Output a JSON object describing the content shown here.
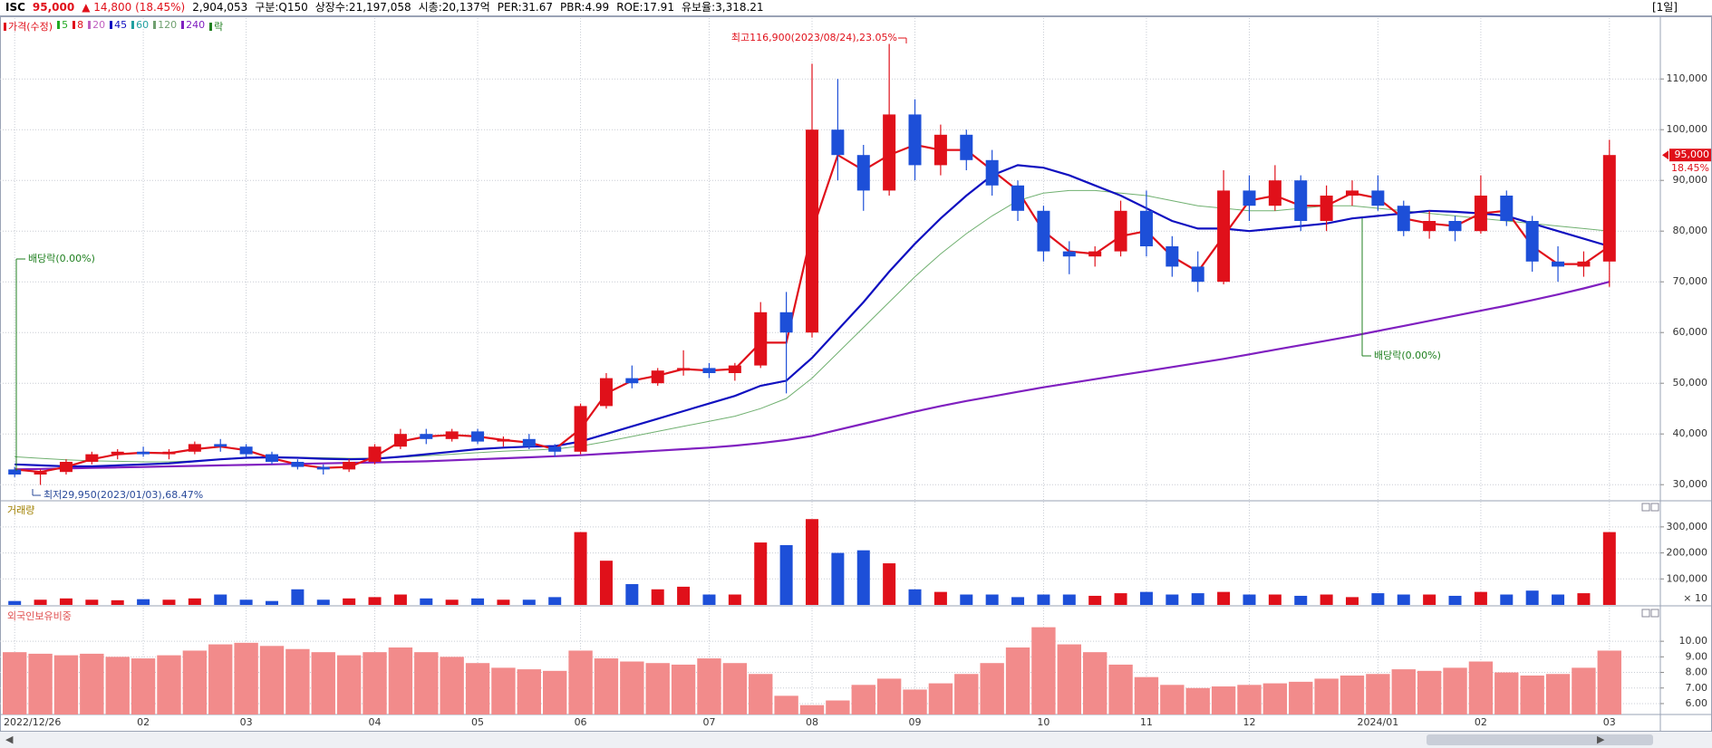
{
  "header": {
    "code": "ISC",
    "price": "95,000",
    "change": "▲ 14,800 (18.45%)",
    "volume": "2,904,053",
    "market": "구분:Q150",
    "shares": "상장수:21,197,058",
    "cap": "시총:20,137억",
    "per": "PER:31.67",
    "pbr": "PBR:4.99",
    "roe": "ROE:17.91",
    "reserve": "유보율:3,318.21",
    "period": "[1일]"
  },
  "chart_data": [
    {
      "type": "candlestick",
      "legend": [
        {
          "name": "가격(수정)",
          "color": "#e0101a"
        },
        {
          "name": "5",
          "color": "#22aa22"
        },
        {
          "name": "8",
          "color": "#e0101a"
        },
        {
          "name": "20",
          "color": "#c060c0"
        },
        {
          "name": "45",
          "color": "#1010c0"
        },
        {
          "name": "60",
          "color": "#20a0a0"
        },
        {
          "name": "120",
          "color": "#70a070"
        },
        {
          "name": "240",
          "color": "#8020c0"
        },
        {
          "name": "락",
          "color": "#208020"
        }
      ],
      "categories": [
        "2022/12/26",
        null,
        null,
        null,
        null,
        "02",
        null,
        null,
        null,
        "03",
        null,
        null,
        null,
        null,
        "04",
        null,
        null,
        null,
        "05",
        null,
        null,
        null,
        "06",
        null,
        null,
        null,
        null,
        "07",
        null,
        null,
        null,
        "08",
        null,
        null,
        null,
        "09",
        null,
        null,
        null,
        null,
        "10",
        null,
        null,
        null,
        "11",
        null,
        null,
        null,
        "12",
        null,
        null,
        null,
        null,
        "2024/01",
        null,
        null,
        null,
        "02",
        null,
        null,
        null,
        null,
        "03"
      ],
      "open": [
        33000,
        32000,
        32500,
        34500,
        36000,
        36500,
        36000,
        36500,
        38000,
        37500,
        36000,
        34500,
        33500,
        33000,
        34500,
        37500,
        40000,
        39000,
        40500,
        38500,
        39000,
        37500,
        36500,
        45500,
        51000,
        50000,
        52500,
        53000,
        52000,
        53500,
        64000,
        60000,
        100000,
        95000,
        88000,
        103000,
        93000,
        99000,
        94000,
        89000,
        84000,
        76000,
        75000,
        76000,
        84000,
        77000,
        73000,
        70000,
        88000,
        85000,
        90000,
        82000,
        87000,
        88000,
        85000,
        80000,
        82000,
        80000,
        87000,
        82000,
        74000,
        73000,
        74000
      ],
      "high": [
        33500,
        33000,
        35000,
        36500,
        37000,
        37500,
        37000,
        38500,
        39000,
        38000,
        36500,
        35000,
        34000,
        35000,
        38000,
        41000,
        41000,
        41000,
        41000,
        39500,
        40000,
        38000,
        46000,
        52000,
        53500,
        53000,
        56500,
        54000,
        54000,
        66000,
        68000,
        113000,
        110000,
        97000,
        116900,
        106000,
        101000,
        100000,
        96000,
        90000,
        85000,
        78000,
        77000,
        86000,
        88000,
        79000,
        76000,
        92000,
        91000,
        93000,
        91000,
        89000,
        90000,
        91000,
        86000,
        84000,
        83000,
        91000,
        88000,
        83000,
        77000,
        76000,
        98000
      ],
      "low": [
        31500,
        29950,
        32000,
        34000,
        35000,
        35500,
        35000,
        36000,
        36500,
        35500,
        34000,
        33000,
        32000,
        32500,
        34000,
        37000,
        38000,
        38500,
        38000,
        37500,
        37000,
        35500,
        36000,
        45000,
        49000,
        49500,
        51500,
        51000,
        50500,
        53000,
        48000,
        59000,
        90000,
        84000,
        87000,
        90000,
        91000,
        92000,
        87000,
        82000,
        74000,
        71500,
        73000,
        75000,
        75000,
        71000,
        68000,
        69500,
        82000,
        84000,
        80000,
        80000,
        85000,
        84000,
        79000,
        78500,
        78000,
        79500,
        81000,
        72000,
        70000,
        71000,
        69000
      ],
      "close": [
        32000,
        32500,
        34500,
        36000,
        36500,
        36000,
        36500,
        38000,
        37500,
        36000,
        34500,
        33500,
        33000,
        34500,
        37500,
        40000,
        39000,
        40500,
        38500,
        39000,
        37500,
        36500,
        45500,
        51000,
        50000,
        52500,
        53000,
        52000,
        53500,
        64000,
        60000,
        100000,
        95000,
        88000,
        103000,
        93000,
        99000,
        94000,
        89000,
        84000,
        76000,
        75000,
        76000,
        84000,
        77000,
        73000,
        70000,
        88000,
        85000,
        90000,
        82000,
        87000,
        88000,
        85000,
        80000,
        82000,
        80000,
        87000,
        82000,
        74000,
        73000,
        74000,
        95000
      ],
      "up_color": "#e0101a",
      "down_color": "#1d4fd8",
      "ma_series": [
        {
          "color": "#70b070",
          "bold": false,
          "values": [
            35500,
            35200,
            34900,
            34700,
            34600,
            34500,
            34500,
            34700,
            35000,
            35300,
            35400,
            35400,
            35300,
            35200,
            35200,
            35400,
            35700,
            36000,
            36300,
            36600,
            36800,
            37000,
            37600,
            38500,
            39500,
            40500,
            41500,
            42500,
            43500,
            45000,
            47000,
            51000,
            56000,
            61000,
            66000,
            71000,
            75500,
            79500,
            83000,
            86000,
            87500,
            88000,
            88000,
            87500,
            87000,
            86000,
            85000,
            84500,
            84000,
            84000,
            84500,
            85000,
            85000,
            84500,
            84000,
            83500,
            83000,
            82500,
            82000,
            81500,
            81000,
            80500,
            80000
          ]
        },
        {
          "color": "#8020c0",
          "bold": true,
          "values": [
            33000,
            33100,
            33200,
            33300,
            33400,
            33500,
            33600,
            33700,
            33800,
            33900,
            34000,
            34100,
            34200,
            34300,
            34400,
            34500,
            34600,
            34800,
            35000,
            35200,
            35400,
            35600,
            35800,
            36100,
            36400,
            36700,
            37000,
            37300,
            37700,
            38200,
            38800,
            39600,
            40800,
            42000,
            43200,
            44400,
            45500,
            46500,
            47400,
            48300,
            49200,
            50000,
            50800,
            51600,
            52400,
            53200,
            54000,
            54800,
            55700,
            56600,
            57500,
            58400,
            59300,
            60300,
            61300,
            62300,
            63300,
            64300,
            65300,
            66400,
            67500,
            68700,
            70000
          ]
        },
        {
          "color": "#1010c0",
          "bold": true,
          "values": [
            34000,
            33800,
            33600,
            33600,
            33800,
            34000,
            34200,
            34600,
            35000,
            35300,
            35400,
            35300,
            35100,
            35000,
            35100,
            35500,
            36000,
            36500,
            37000,
            37300,
            37500,
            37600,
            38500,
            40000,
            41500,
            43000,
            44500,
            46000,
            47500,
            49500,
            50500,
            55000,
            60500,
            66000,
            72000,
            77500,
            82500,
            87000,
            91000,
            93000,
            92500,
            91000,
            89000,
            87000,
            84500,
            82000,
            80500,
            80500,
            80000,
            80500,
            81000,
            81500,
            82500,
            83000,
            83500,
            84000,
            83800,
            83500,
            83000,
            81500,
            80000,
            78500,
            77000
          ]
        },
        {
          "color": "#e0101a",
          "bold": true,
          "values": [
            33000,
            32500,
            33500,
            35000,
            36000,
            36300,
            36200,
            37000,
            37500,
            36800,
            35200,
            34000,
            33300,
            33500,
            35500,
            38500,
            39500,
            39800,
            39500,
            38800,
            38300,
            37000,
            41000,
            48000,
            50500,
            51500,
            52800,
            52500,
            52800,
            58000,
            58000,
            80000,
            95000,
            92000,
            95000,
            97000,
            96000,
            96000,
            92000,
            88000,
            80000,
            76000,
            75500,
            79000,
            80000,
            75000,
            72000,
            79000,
            86000,
            87000,
            85000,
            85000,
            87500,
            86500,
            82500,
            81500,
            81000,
            83500,
            84000,
            77000,
            73500,
            73500,
            77000
          ]
        }
      ],
      "ylim": [
        27000,
        122000
      ],
      "yticks": [
        {
          "value": 30000,
          "label": "30,000"
        },
        {
          "value": 40000,
          "label": "40,000"
        },
        {
          "value": 50000,
          "label": "50,000"
        },
        {
          "value": 60000,
          "label": "60,000"
        },
        {
          "value": 70000,
          "label": "70,000"
        },
        {
          "value": 80000,
          "label": "80,000"
        },
        {
          "value": 90000,
          "label": "90,000"
        },
        {
          "value": 100000,
          "label": "100,000"
        },
        {
          "value": 110000,
          "label": "110,000"
        }
      ],
      "grid": true,
      "last_price_label": "95,000",
      "last_change_label": "18.45%",
      "annotations": {
        "high": "최고116,900(2023/08/24),23.05%",
        "low": "최저29,950(2023/01/03),68.47%",
        "dividend": [
          "배당락(0.00%)",
          "배당락(0.00%)"
        ]
      }
    },
    {
      "type": "volume",
      "title": "거래량",
      "unit_label": "× 10",
      "values": [
        15000,
        20000,
        25000,
        20000,
        18000,
        22000,
        20000,
        25000,
        40000,
        20000,
        15000,
        60000,
        20000,
        25000,
        30000,
        40000,
        25000,
        20000,
        25000,
        20000,
        20000,
        30000,
        280000,
        170000,
        80000,
        60000,
        70000,
        40000,
        40000,
        240000,
        230000,
        330000,
        200000,
        210000,
        160000,
        60000,
        50000,
        40000,
        40000,
        30000,
        40000,
        40000,
        35000,
        45000,
        50000,
        40000,
        45000,
        50000,
        40000,
        40000,
        35000,
        40000,
        30000,
        45000,
        40000,
        40000,
        35000,
        50000,
        40000,
        55000,
        40000,
        45000,
        280000
      ],
      "ylim": [
        0,
        390000
      ],
      "yticks": [
        {
          "value": 100000,
          "label": "100,000"
        },
        {
          "value": 200000,
          "label": "200,000"
        },
        {
          "value": 300000,
          "label": "300,000"
        }
      ]
    },
    {
      "type": "bar",
      "title": "외국인보유비중",
      "color": "#f28b8b",
      "values": [
        9.3,
        9.2,
        9.1,
        9.2,
        9.0,
        8.9,
        9.1,
        9.4,
        9.8,
        9.9,
        9.7,
        9.5,
        9.3,
        9.1,
        9.3,
        9.6,
        9.3,
        9.0,
        8.6,
        8.3,
        8.2,
        8.1,
        9.4,
        8.9,
        8.7,
        8.6,
        8.5,
        8.9,
        8.6,
        7.9,
        6.5,
        5.9,
        6.2,
        7.2,
        7.6,
        6.9,
        7.3,
        7.9,
        8.6,
        9.6,
        10.9,
        9.8,
        9.3,
        8.5,
        7.7,
        7.2,
        7.0,
        7.1,
        7.2,
        7.3,
        7.4,
        7.6,
        7.8,
        7.9,
        8.2,
        8.1,
        8.3,
        8.7,
        8.0,
        7.8,
        7.9,
        8.3,
        9.4
      ],
      "ylim": [
        5.3,
        12.1
      ],
      "yticks": [
        {
          "value": 6,
          "label": "6.00"
        },
        {
          "value": 7,
          "label": "7.00"
        },
        {
          "value": 8,
          "label": "8.00"
        },
        {
          "value": 9,
          "label": "9.00"
        },
        {
          "value": 10,
          "label": "10.00"
        }
      ]
    }
  ]
}
